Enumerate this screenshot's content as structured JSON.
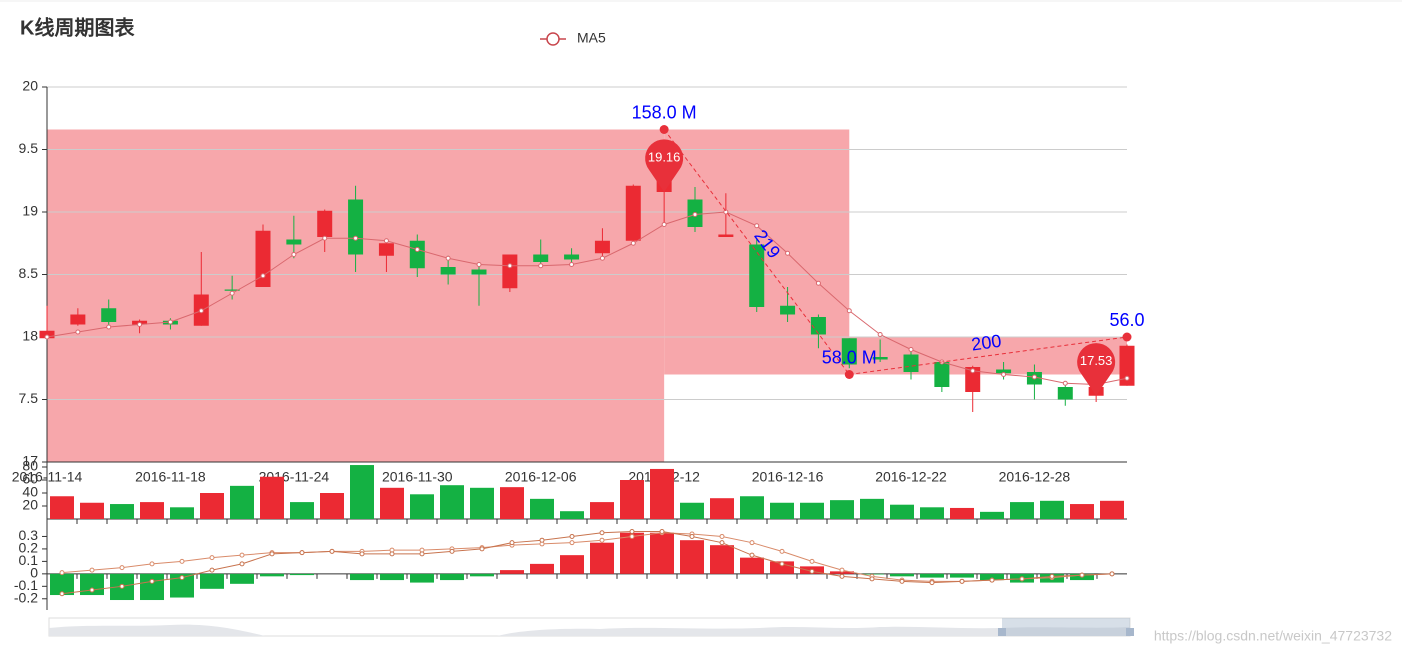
{
  "title": "K线周期图表",
  "watermark": "https://blog.csdn.net/weixin_47723732",
  "chart_data": [
    {
      "type": "candlestick",
      "categories": [
        "2016-11-14",
        null,
        null,
        null,
        "2016-11-18",
        null,
        null,
        null,
        "2016-11-24",
        null,
        null,
        null,
        "2016-11-30",
        null,
        null,
        null,
        "2016-12-06",
        null,
        null,
        null,
        "2016-12-12",
        null,
        null,
        null,
        "2016-12-16",
        null,
        null,
        null,
        "2016-12-22",
        null,
        null,
        null,
        "2016-12-28",
        null,
        null,
        null
      ],
      "open": [
        17.99,
        18.1,
        18.23,
        18.1,
        18.13,
        18.09,
        18.38,
        18.4,
        18.78,
        18.8,
        19.1,
        18.65,
        18.77,
        18.56,
        18.54,
        18.39,
        18.66,
        18.66,
        18.67,
        18.77,
        19.16,
        19.1,
        18.8,
        18.74,
        18.25,
        18.16,
        17.99,
        17.84,
        17.86,
        17.8,
        17.56,
        17.74,
        17.72,
        17.6,
        17.53,
        17.61
      ],
      "close": [
        18.05,
        18.18,
        18.12,
        18.13,
        18.1,
        18.34,
        18.37,
        18.85,
        18.74,
        19.01,
        18.66,
        18.75,
        18.55,
        18.5,
        18.5,
        18.66,
        18.6,
        18.62,
        18.77,
        19.21,
        19.26,
        18.88,
        18.82,
        18.24,
        18.18,
        18.02,
        17.78,
        17.82,
        17.72,
        17.6,
        17.76,
        17.71,
        17.62,
        17.5,
        17.6,
        17.93
      ],
      "low": [
        17.98,
        18.09,
        18.1,
        18.03,
        18.06,
        18.09,
        18.3,
        18.4,
        18.63,
        18.68,
        18.52,
        18.52,
        18.48,
        18.42,
        18.25,
        18.36,
        18.57,
        18.58,
        18.63,
        18.76,
        18.9,
        18.84,
        18.8,
        18.2,
        18.12,
        17.91,
        17.75,
        17.8,
        17.66,
        17.56,
        17.4,
        17.66,
        17.5,
        17.45,
        17.48,
        17.61
      ],
      "high": [
        18.25,
        18.23,
        18.3,
        18.14,
        18.15,
        18.68,
        18.49,
        18.9,
        18.97,
        19.02,
        19.21,
        18.78,
        18.82,
        18.65,
        18.58,
        18.66,
        18.78,
        18.71,
        18.87,
        19.22,
        19.34,
        19.2,
        19.15,
        18.78,
        18.4,
        18.18,
        17.99,
        17.98,
        17.9,
        17.82,
        17.77,
        17.8,
        17.78,
        17.62,
        17.63,
        17.94
      ],
      "up_color": "#eb2a33",
      "down_color": "#14b143",
      "series": [
        {
          "name": "MA5",
          "color": "#d9686e",
          "values": [
            18.0,
            18.04,
            18.08,
            18.1,
            18.12,
            18.21,
            18.35,
            18.49,
            18.66,
            18.79,
            18.79,
            18.77,
            18.7,
            18.63,
            18.58,
            18.57,
            18.57,
            18.58,
            18.63,
            18.75,
            18.9,
            18.98,
            19.0,
            18.89,
            18.67,
            18.43,
            18.21,
            18.02,
            17.9,
            17.8,
            17.73,
            17.7,
            17.68,
            17.63,
            17.62,
            17.67
          ]
        }
      ],
      "ylim": [
        17,
        20
      ],
      "yticks": [
        17,
        {
          "value": 17.5,
          "label": "7.5"
        },
        18,
        {
          "value": 18.5,
          "label": "8.5"
        },
        19,
        {
          "value": 19.5,
          "label": "9.5"
        },
        20
      ],
      "grid": true,
      "mark_areas": [
        {
          "from": [
            0,
            19.66
          ],
          "to": [
            20,
            17
          ]
        },
        {
          "from": [
            20,
            19.66
          ],
          "to": [
            26,
            17.7
          ]
        },
        {
          "from": [
            26,
            18.0
          ],
          "to": [
            35,
            17.7
          ]
        }
      ],
      "mark_area_color": "#f7a7ab",
      "mark_lines": [
        {
          "label": "219",
          "from": [
            20,
            19.66
          ],
          "to": [
            26,
            17.7
          ]
        },
        {
          "label": "200",
          "from": [
            26,
            17.7
          ],
          "to": [
            35,
            18.0
          ]
        }
      ],
      "mark_points": [
        {
          "label": "158.0 M",
          "at": [
            20,
            19.66
          ]
        },
        {
          "label": "58.0 M",
          "at": [
            26,
            17.7
          ]
        },
        {
          "label": "56.0",
          "at": [
            35,
            18.0
          ]
        }
      ],
      "pins": [
        {
          "index": 20,
          "value": 19.16
        },
        {
          "index": 34,
          "value": 17.53
        }
      ]
    },
    {
      "type": "bar",
      "values": [
        35,
        25,
        23,
        26,
        18,
        40,
        51,
        65,
        26,
        40,
        83,
        48,
        38,
        52,
        48,
        49,
        31,
        12,
        26,
        60,
        77,
        25,
        32,
        35,
        25,
        25,
        29,
        31,
        22,
        18,
        17,
        11,
        26,
        28,
        23,
        28
      ],
      "ylim": [
        0,
        80
      ],
      "yticks": [
        20,
        40,
        60,
        80
      ]
    },
    {
      "type": "macd",
      "values": [
        -0.17,
        -0.17,
        -0.21,
        -0.21,
        -0.19,
        -0.12,
        -0.08,
        -0.02,
        -0.01,
        0.0,
        -0.05,
        -0.05,
        -0.07,
        -0.05,
        -0.02,
        0.03,
        0.08,
        0.15,
        0.25,
        0.33,
        0.33,
        0.27,
        0.23,
        0.13,
        0.1,
        0.06,
        0.02,
        -0.005,
        -0.02,
        -0.03,
        -0.03,
        -0.05,
        -0.07,
        -0.07,
        -0.05,
        0.0
      ],
      "lines": [
        {
          "color": "#d98b6a",
          "values": [
            0.01,
            0.03,
            0.05,
            0.08,
            0.1,
            0.13,
            0.15,
            0.17,
            0.17,
            0.18,
            0.18,
            0.19,
            0.19,
            0.2,
            0.21,
            0.23,
            0.24,
            0.25,
            0.27,
            0.3,
            0.33,
            0.32,
            0.3,
            0.25,
            0.18,
            0.1,
            0.03,
            -0.02,
            -0.05,
            -0.06,
            -0.06,
            -0.05,
            -0.04,
            -0.03,
            -0.01,
            0.0
          ]
        },
        {
          "color": "#c8744f",
          "values": [
            -0.16,
            -0.13,
            -0.1,
            -0.06,
            -0.03,
            0.03,
            0.08,
            0.16,
            0.17,
            0.18,
            0.16,
            0.16,
            0.16,
            0.18,
            0.2,
            0.25,
            0.27,
            0.3,
            0.33,
            0.34,
            0.34,
            0.3,
            0.25,
            0.15,
            0.08,
            0.02,
            -0.02,
            -0.04,
            -0.06,
            -0.07,
            -0.06,
            -0.05,
            -0.04,
            -0.02,
            -0.01,
            0.0
          ]
        }
      ],
      "ylim": [
        -0.29,
        0.44
      ],
      "yticks": [
        -0.2,
        -0.1,
        0,
        0.1,
        0.2,
        0.3
      ]
    }
  ]
}
